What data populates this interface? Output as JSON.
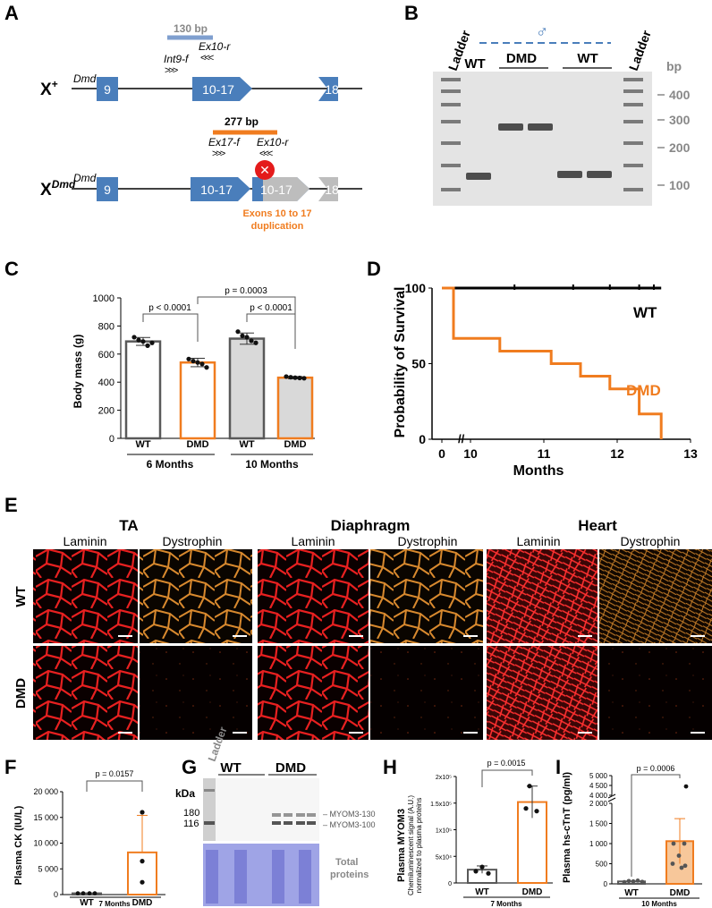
{
  "panels": {
    "A": {
      "letter": "A",
      "wt_label": "X",
      "wt_sup": "+",
      "dmd_label": "X",
      "dmd_sup": "Dmd",
      "gene": "Dmd",
      "exon9": "9",
      "exon10_17": "10-17",
      "exon18": "18",
      "dup_exon": "10-17",
      "amplicon_wt": "130 bp",
      "amplicon_dmd": "277 bp",
      "primer_int9f": "Int9-f",
      "primer_ex10r": "Ex10-r",
      "primer_ex17f": "Ex17-f",
      "primer_ex10r_2": "Ex10-r",
      "dup_caption_1": "Exons 10 to 17",
      "dup_caption_2": "duplication",
      "colors": {
        "exon": "#4a7ebb",
        "wt_amp": "#7f9fcf",
        "dmd_amp": "#f07c1f",
        "gray_exon": "#bdbdbd",
        "stop": "#e41b1b"
      }
    },
    "B": {
      "letter": "B",
      "male_symbol": "♂",
      "ladder_left": "Ladder",
      "ladder_right": "Ladder",
      "lanes": [
        "WT",
        "DMD",
        "WT"
      ],
      "unit": "bp",
      "sizes": [
        "400",
        "300",
        "200",
        "100"
      ]
    },
    "C": {
      "letter": "C",
      "chart_data": {
        "type": "bar",
        "ylabel": "Body mass (g)",
        "ylim": [
          0,
          1000
        ],
        "yticks": [
          "0",
          "200",
          "400",
          "600",
          "800",
          "1000"
        ],
        "categories": [
          "WT",
          "DMD",
          "WT",
          "DMD"
        ],
        "groups": [
          "6 Months",
          "10  Months"
        ],
        "values": [
          690,
          540,
          710,
          432
        ],
        "errors": [
          28,
          30,
          40,
          8
        ],
        "points": [
          [
            720,
            700,
            690,
            660,
            680
          ],
          [
            565,
            550,
            540,
            530,
            505
          ],
          [
            760,
            730,
            720,
            695,
            680
          ],
          [
            440,
            435,
            432,
            430,
            428
          ]
        ],
        "pvalues": [
          "p < 0.0001",
          "p = 0.0003",
          "p < 0.0001"
        ],
        "colors": {
          "wt_fill": "#ffffff",
          "wt_edge": "#595959",
          "dmd_edge": "#f07c1f",
          "gray_fill": "#d9d9d9"
        }
      }
    },
    "D": {
      "letter": "D",
      "chart_data": {
        "type": "line",
        "ylabel": "Probability of Survival",
        "xlabel": "Months",
        "yticks": [
          "0",
          "50",
          "100"
        ],
        "xticks": [
          "0",
          "10",
          "11",
          "12",
          "13"
        ],
        "series": [
          {
            "name": "WT",
            "steps": [
              [
                0,
                100
              ],
              [
                12.6,
                100
              ]
            ]
          },
          {
            "name": "DMD",
            "steps": [
              [
                0,
                100
              ],
              [
                0.5,
                100
              ],
              [
                0.5,
                66.7
              ],
              [
                10.4,
                66.7
              ],
              [
                10.4,
                58.3
              ],
              [
                11.1,
                58.3
              ],
              [
                11.1,
                50
              ],
              [
                11.5,
                50
              ],
              [
                11.5,
                41.7
              ],
              [
                11.9,
                41.7
              ],
              [
                11.9,
                33.3
              ],
              [
                12.3,
                33.3
              ],
              [
                12.3,
                16.7
              ],
              [
                12.5,
                16.7
              ],
              [
                12.5,
                16.7
              ],
              [
                12.6,
                16.7
              ],
              [
                12.6,
                0
              ]
            ]
          }
        ],
        "colors": {
          "WT": "#000000",
          "DMD": "#f07c1f"
        }
      }
    },
    "E": {
      "letter": "E",
      "groups": [
        "TA",
        "Diaphragm",
        "Heart"
      ],
      "stains": [
        "Laminin",
        "Dystrophin",
        "Laminin",
        "Dystrophin",
        "Laminin",
        "Dystrophin"
      ],
      "rows": [
        "WT",
        "DMD"
      ]
    },
    "F": {
      "letter": "F",
      "chart_data": {
        "type": "bar",
        "ylabel": "Plasma CK (IU/L)",
        "yticks": [
          "0",
          "5 000",
          "10 000",
          "15 000",
          "20 000"
        ],
        "ylim": [
          0,
          20000
        ],
        "categories": [
          "WT",
          "DMD"
        ],
        "values": [
          250,
          8200
        ],
        "errors": [
          0,
          7200
        ],
        "pvalue": "p = 0.0157",
        "group": "7 Months"
      }
    },
    "G": {
      "letter": "G",
      "ladder": "Ladder",
      "unit": "kDa",
      "sizes": [
        "180",
        "116"
      ],
      "lanes": [
        "WT",
        "DMD"
      ],
      "bands": [
        "MYOM3-130",
        "MYOM3-100"
      ],
      "total_label_1": "Total",
      "total_label_2": "proteins"
    },
    "H": {
      "letter": "H",
      "chart_data": {
        "type": "bar",
        "ylabel_1": "Plasma MYOM3",
        "ylabel_2": "Chemiluminescent signal (A.U.)",
        "ylabel_3": "normalized to plasma proteins",
        "yticks": [
          "0",
          "5x10⁴",
          "1x10⁵",
          "1.5x10⁵",
          "2x10⁵"
        ],
        "ylim": [
          0,
          200000
        ],
        "categories": [
          "WT",
          "DMD"
        ],
        "values": [
          25000,
          152000
        ],
        "errors": [
          7000,
          30000
        ],
        "pvalue": "p = 0.0015",
        "group": "7 Months"
      }
    },
    "I": {
      "letter": "I",
      "chart_data": {
        "type": "bar",
        "ylabel": "Plasma hs-cTnT (pg/ml)",
        "yticks": [
          "0",
          "500",
          "1 000",
          "1 500",
          "2 000",
          "4 000",
          "4 500",
          "5 000"
        ],
        "categories": [
          "WT",
          "DMD"
        ],
        "values": [
          60,
          1060
        ],
        "errors": [
          30,
          560
        ],
        "pvalue": "p = 0.0006",
        "group": "10 Months"
      }
    }
  }
}
